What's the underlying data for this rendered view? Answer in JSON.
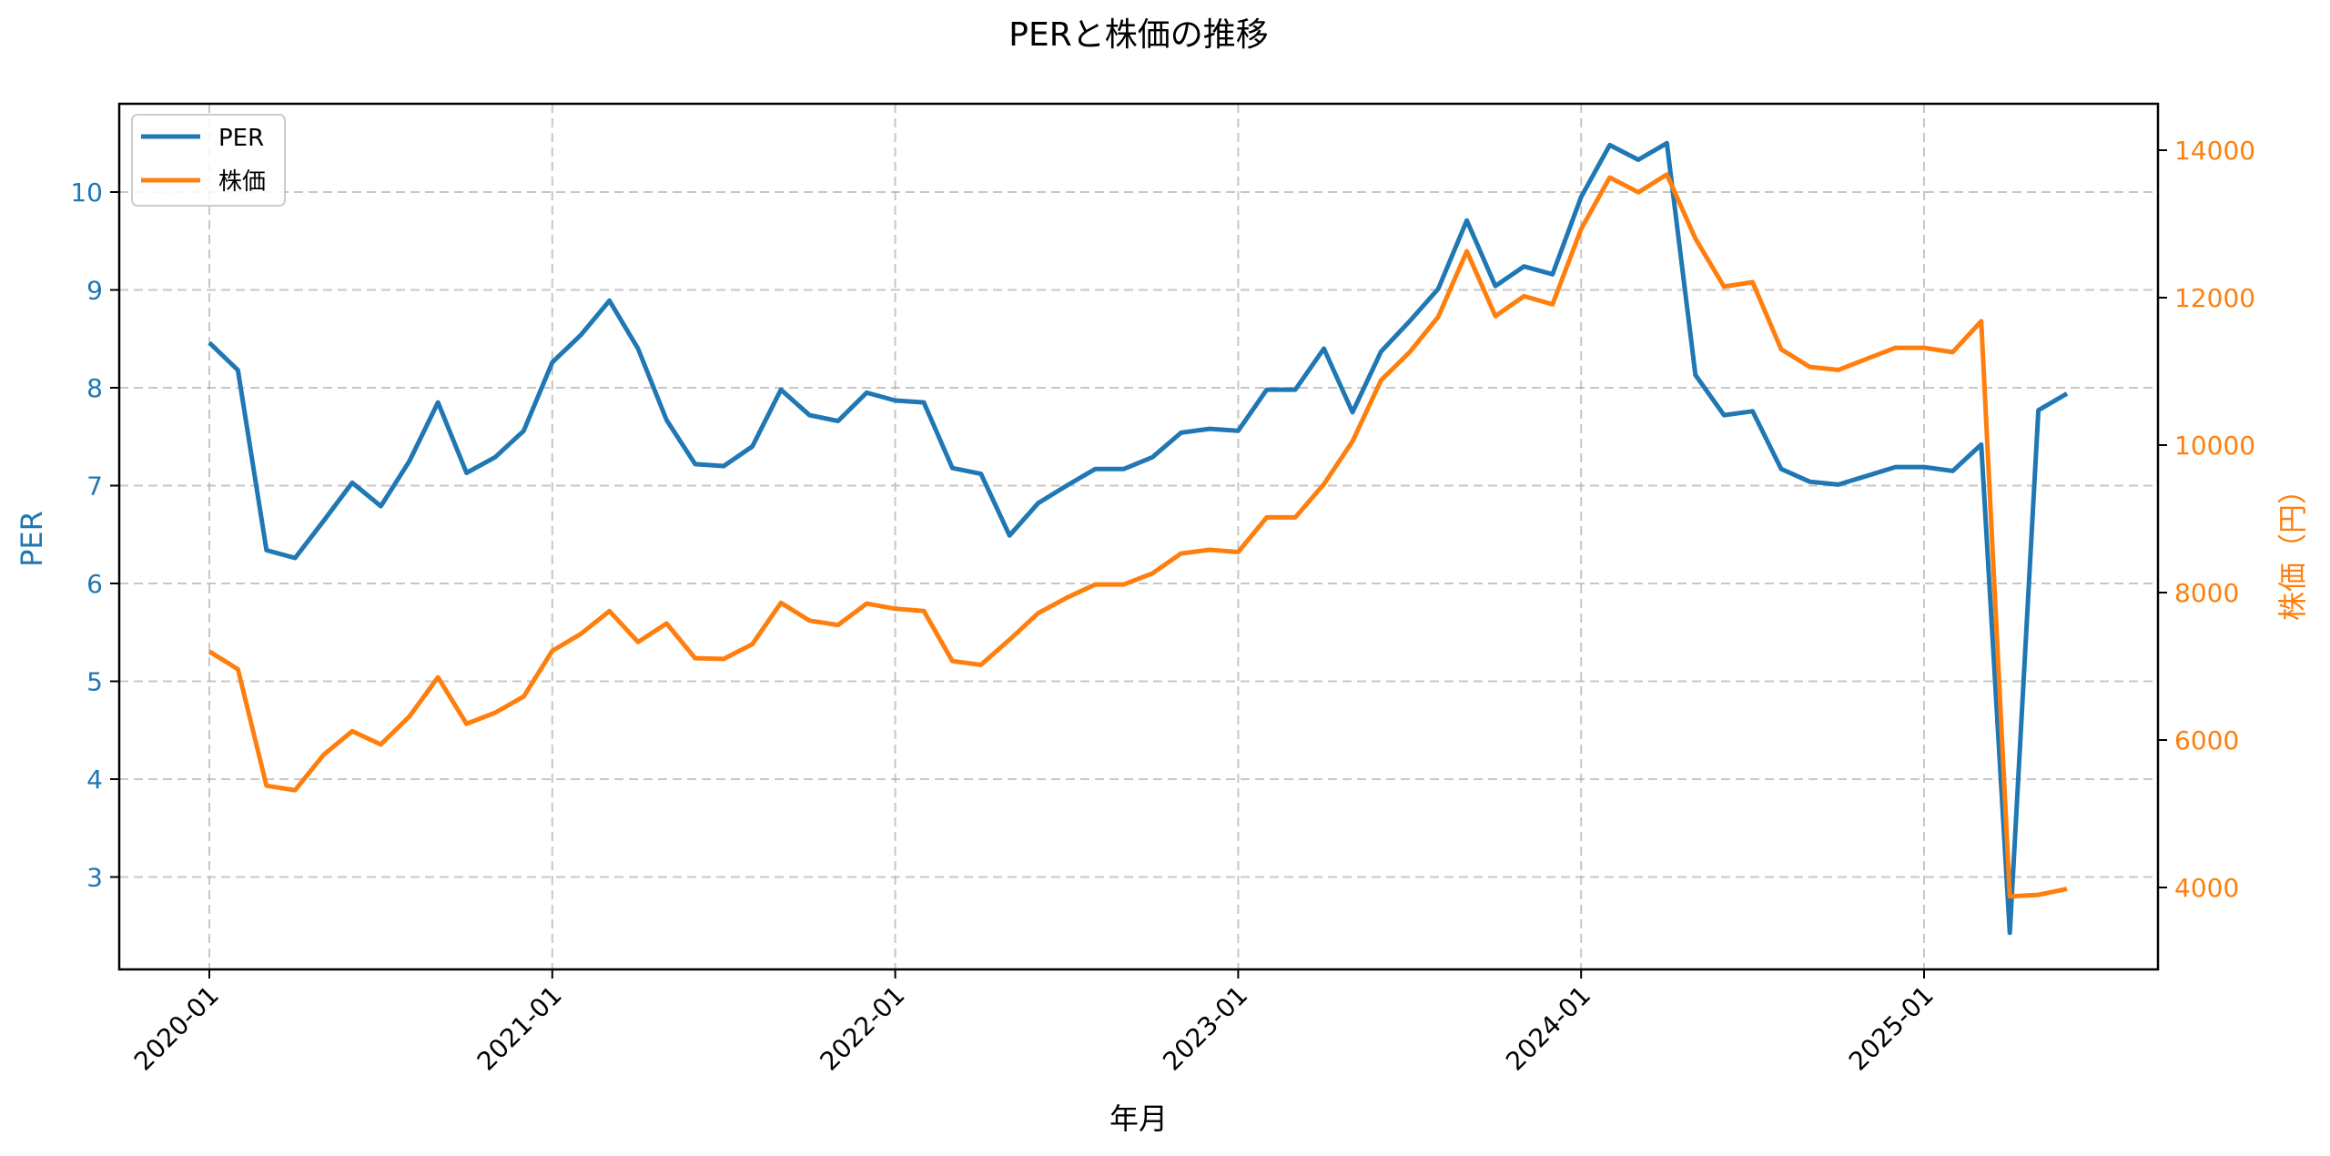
{
  "chart_data": {
    "type": "line",
    "title": "PERと株価の推移",
    "xlabel": "年月",
    "ylabel": "PER",
    "y2label": "株価（円）",
    "x_tick_labels": [
      "2020-01",
      "2021-01",
      "2022-01",
      "2023-01",
      "2024-01",
      "2025-01"
    ],
    "y_ticks": [
      3,
      4,
      5,
      6,
      7,
      8,
      9,
      10
    ],
    "y2_ticks": [
      4000,
      6000,
      8000,
      10000,
      12000,
      14000
    ],
    "ylim": [
      2.1,
      10.9
    ],
    "y2lim": [
      3100,
      14600
    ],
    "grid": true,
    "legend_position": "upper left",
    "x": [
      "2020-01",
      "2020-02",
      "2020-03",
      "2020-04",
      "2020-05",
      "2020-06",
      "2020-07",
      "2020-08",
      "2020-09",
      "2020-10",
      "2020-11",
      "2020-12",
      "2021-01",
      "2021-02",
      "2021-03",
      "2021-04",
      "2021-05",
      "2021-06",
      "2021-07",
      "2021-08",
      "2021-09",
      "2021-10",
      "2021-11",
      "2021-12",
      "2022-01",
      "2022-02",
      "2022-03",
      "2022-04",
      "2022-05",
      "2022-06",
      "2022-07",
      "2022-08",
      "2022-09",
      "2022-10",
      "2022-11",
      "2022-12",
      "2023-01",
      "2023-02",
      "2023-03",
      "2023-04",
      "2023-05",
      "2023-06",
      "2023-07",
      "2023-08",
      "2023-09",
      "2023-10",
      "2023-11",
      "2023-12",
      "2024-01",
      "2024-02",
      "2024-03",
      "2024-04",
      "2024-05",
      "2024-06",
      "2024-07",
      "2024-08",
      "2024-09",
      "2024-10",
      "2024-11",
      "2024-12",
      "2025-01",
      "2025-02",
      "2025-03",
      "2025-04",
      "2025-05",
      "2025-06"
    ],
    "series": [
      {
        "name": "PER",
        "axis": "left",
        "color": "#1f77b4",
        "values": [
          8.46,
          8.18,
          6.34,
          6.26,
          6.64,
          7.03,
          6.79,
          7.25,
          7.85,
          7.13,
          7.29,
          7.56,
          8.26,
          8.54,
          8.89,
          8.4,
          7.67,
          7.22,
          7.2,
          7.4,
          7.98,
          7.72,
          7.66,
          7.95,
          7.87,
          7.85,
          7.18,
          7.12,
          6.49,
          6.82,
          7.0,
          7.17,
          7.17,
          7.29,
          7.54,
          7.58,
          7.56,
          7.98,
          7.98,
          8.4,
          7.75,
          8.37,
          8.68,
          9.01,
          9.71,
          9.04,
          9.24,
          9.16,
          9.95,
          10.48,
          10.33,
          10.5,
          8.13,
          7.72,
          7.76,
          7.17,
          7.04,
          7.01,
          7.1,
          7.19,
          7.19,
          7.15,
          7.42,
          2.43,
          7.77,
          7.94
        ]
      },
      {
        "name": "株価",
        "axis": "right",
        "color": "#ff7f0e",
        "values": [
          7200,
          6960,
          5380,
          5320,
          5800,
          6120,
          5940,
          6320,
          6850,
          6220,
          6370,
          6590,
          7210,
          7440,
          7750,
          7330,
          7580,
          7110,
          7100,
          7300,
          7860,
          7620,
          7560,
          7850,
          7780,
          7750,
          7070,
          7020,
          7360,
          7720,
          7930,
          8110,
          8110,
          8260,
          8530,
          8580,
          8550,
          9020,
          9020,
          9470,
          10050,
          10880,
          11260,
          11740,
          12630,
          11750,
          12020,
          11910,
          12930,
          13630,
          13430,
          13670,
          12800,
          12150,
          12210,
          11300,
          11060,
          11020,
          11170,
          11320,
          11320,
          11260,
          11680,
          3880,
          3900,
          3980
        ]
      }
    ]
  },
  "legend": {
    "items": [
      {
        "label": "PER",
        "color": "#1f77b4"
      },
      {
        "label": "株価",
        "color": "#ff7f0e"
      }
    ]
  }
}
